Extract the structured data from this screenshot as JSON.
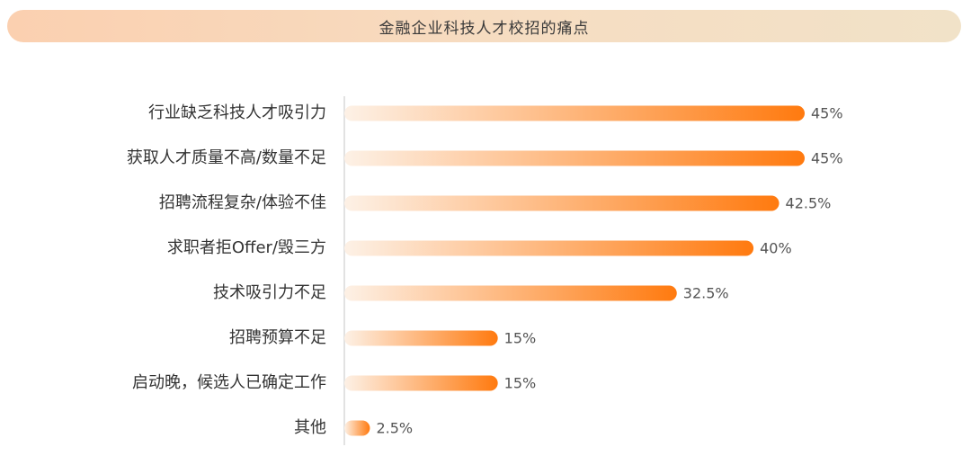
{
  "chart_data": {
    "type": "bar",
    "orientation": "horizontal",
    "title": "金融企业科技人才校招的痛点",
    "categories": [
      "行业缺乏科技人才吸引力",
      "获取人才质量不高/数量不足",
      "招聘流程复杂/体验不佳",
      "求职者拒Offer/毁三方",
      "技术吸引力不足",
      "招聘预算不足",
      "启动晚，候选人已确定工作",
      "其他"
    ],
    "values": [
      45,
      45,
      42.5,
      40,
      32.5,
      15,
      15,
      2.5
    ],
    "value_labels": [
      "45%",
      "45%",
      "42.5%",
      "40%",
      "32.5%",
      "15%",
      "15%",
      "2.5%"
    ],
    "unit": "%",
    "xlim": [
      0,
      45
    ],
    "grid": false,
    "legend": "none",
    "colors": {
      "bar_start": "#fdf1e6",
      "bar_end": "#ff7a0f",
      "axis": "#d9d9d9"
    }
  }
}
